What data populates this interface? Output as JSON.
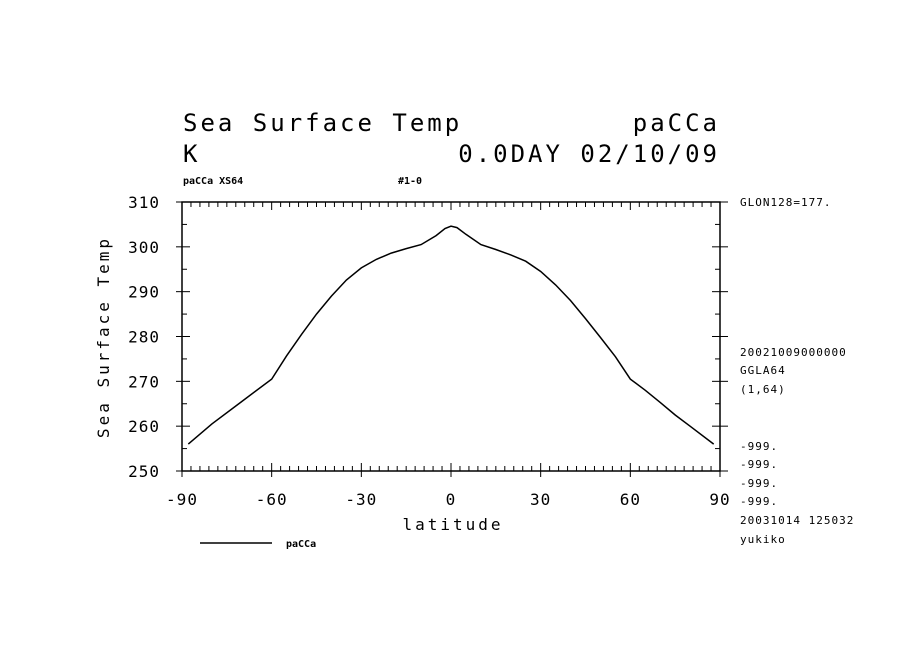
{
  "chart_data": {
    "type": "line",
    "title": "Sea Surface Temp",
    "title_right": "paCCa",
    "units": "K",
    "time_label": "0.0DAY 02/10/09",
    "subtitle_left": "paCCa XS64",
    "subtitle_mid": "#1-0",
    "xlabel": "latitude",
    "ylabel": "Sea Surface Temp",
    "xlim": [
      -90,
      90
    ],
    "ylim": [
      250,
      310
    ],
    "x_ticks": [
      -90,
      -60,
      -30,
      0,
      30,
      60,
      90
    ],
    "x_tick_labels": [
      "-90",
      "-60",
      "-30",
      "0",
      "30",
      "60",
      "90"
    ],
    "y_ticks": [
      250,
      260,
      270,
      280,
      290,
      300,
      310
    ],
    "y_tick_labels": [
      "250",
      "260",
      "270",
      "280",
      "290",
      "300",
      "310"
    ],
    "legend": "paCCa",
    "series": [
      {
        "name": "paCCa",
        "x": [
          -87.9,
          -80,
          -70,
          -60,
          -55,
          -50,
          -45,
          -40,
          -35,
          -30,
          -25,
          -20,
          -15,
          -10,
          -5,
          -2,
          0,
          2,
          5,
          10,
          15,
          20,
          25,
          30,
          35,
          40,
          45,
          50,
          55,
          60,
          65,
          70,
          75,
          80,
          87.9
        ],
        "values": [
          256,
          260.5,
          265.5,
          270.5,
          275.7,
          280.5,
          285,
          289,
          292.6,
          295.3,
          297.2,
          298.6,
          299.6,
          300.5,
          302.5,
          304.1,
          304.6,
          304.3,
          302.8,
          300.5,
          299.4,
          298.2,
          296.8,
          294.5,
          291.5,
          288,
          284,
          279.8,
          275.5,
          270.5,
          268,
          265.3,
          262.5,
          260,
          256
        ]
      }
    ]
  },
  "info": {
    "top_right": "GLON128=177.",
    "meta": [
      "20021009000000",
      "GGLA64",
      "(1,64)"
    ],
    "missing": [
      "-999.",
      "-999.",
      "-999.",
      "-999."
    ],
    "footer": [
      "20031014 125032",
      "yukiko"
    ]
  }
}
